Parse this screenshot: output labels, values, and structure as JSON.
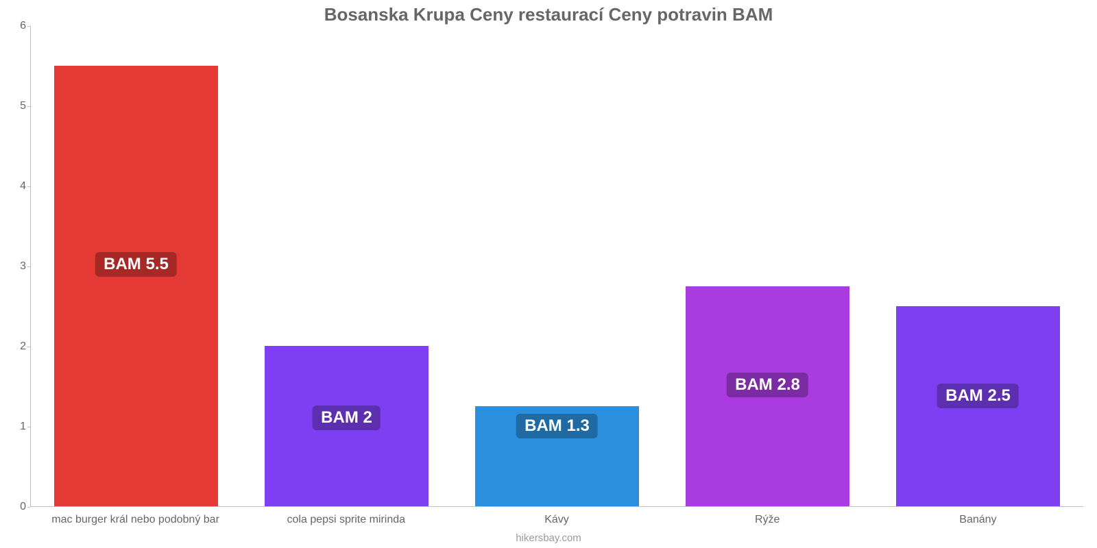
{
  "chart": {
    "type": "bar",
    "title": "Bosanska Krupa Ceny restaurací Ceny potravin BAM",
    "title_color": "#666666",
    "title_fontsize": 26,
    "background_color": "#ffffff",
    "axis_color": "#bfbfbf",
    "tick_label_color": "#666666",
    "tick_fontsize": 16,
    "caption": "hikersbay.com",
    "caption_color": "#999999",
    "ylim": [
      0,
      6
    ],
    "ytick_step": 1,
    "yticks": [
      "0",
      "1",
      "2",
      "3",
      "4",
      "5",
      "6"
    ],
    "bar_width_pct": 78,
    "value_label_fontsize": 24,
    "value_label_text_color": "#ffffff",
    "value_label_corner_radius": 6,
    "series": [
      {
        "category": "mac burger král nebo podobný bar",
        "value": 5.5,
        "value_label": "BAM 5.5",
        "bar_color": "#e53935",
        "label_bg_color": "#a72926"
      },
      {
        "category": "cola pepsi sprite mirinda",
        "value": 2.0,
        "value_label": "BAM 2",
        "bar_color": "#7e3ff2",
        "label_bg_color": "#5c2eb0"
      },
      {
        "category": "Kávy",
        "value": 1.25,
        "value_label": "BAM 1.3",
        "bar_color": "#2b8fdd",
        "label_bg_color": "#1f6aa3"
      },
      {
        "category": "Rýže",
        "value": 2.75,
        "value_label": "BAM 2.8",
        "bar_color": "#a93be0",
        "label_bg_color": "#7c2ba4"
      },
      {
        "category": "Banány",
        "value": 2.5,
        "value_label": "BAM 2.5",
        "bar_color": "#7e3ff2",
        "label_bg_color": "#5c2eb0"
      }
    ]
  }
}
